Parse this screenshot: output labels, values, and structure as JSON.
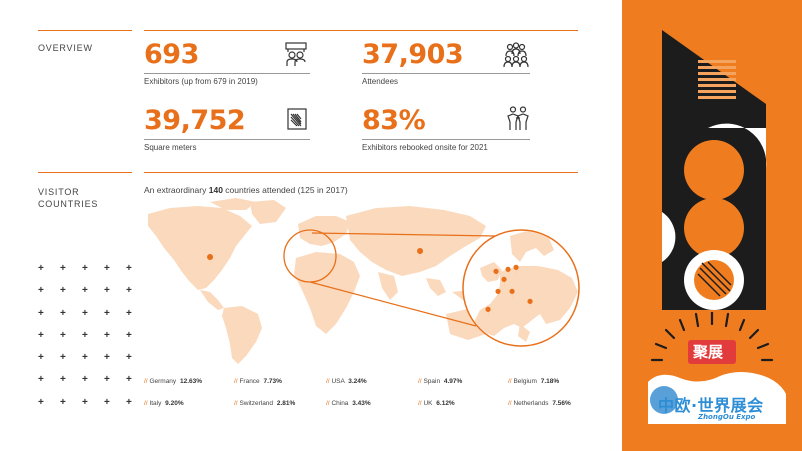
{
  "overview": {
    "title": "OVERVIEW",
    "stats": [
      {
        "value": "693",
        "caption": "Exhibitors (up from 679 in 2019)",
        "icon": "booth-icon"
      },
      {
        "value": "37,903",
        "caption": "Attendees",
        "icon": "people-group-icon"
      },
      {
        "value": "39,752",
        "caption": "Square meters",
        "icon": "floor-area-icon"
      },
      {
        "value": "83%",
        "caption": "Exhibitors rebooked onsite for 2021",
        "icon": "two-people-icon"
      }
    ]
  },
  "visitors": {
    "title_line1": "VISITOR",
    "title_line2": "COUNTRIES",
    "subhead_pre": "An extraordinary ",
    "subhead_bold": "140",
    "subhead_post": " countries attended (125 in 2017)",
    "countries": [
      {
        "name": "Germany",
        "pct": "12.63%"
      },
      {
        "name": "France",
        "pct": "7.73%"
      },
      {
        "name": "USA",
        "pct": "3.24%"
      },
      {
        "name": "Spain",
        "pct": "4.97%"
      },
      {
        "name": "Belgium",
        "pct": "7.18%"
      },
      {
        "name": "Italy",
        "pct": "9.20%"
      },
      {
        "name": "Switzerland",
        "pct": "2.81%"
      },
      {
        "name": "China",
        "pct": "3.43%"
      },
      {
        "name": "UK",
        "pct": "6.12%"
      },
      {
        "name": "Netherlands",
        "pct": "7.56%"
      }
    ]
  },
  "watermark": {
    "badge": "聚展",
    "line1": "中欧·世界展会",
    "line2": "ZhongOu Expo"
  },
  "colors": {
    "accent": "#e8701a",
    "panel": "#ef7c1f",
    "map": "#fbd9bd"
  }
}
